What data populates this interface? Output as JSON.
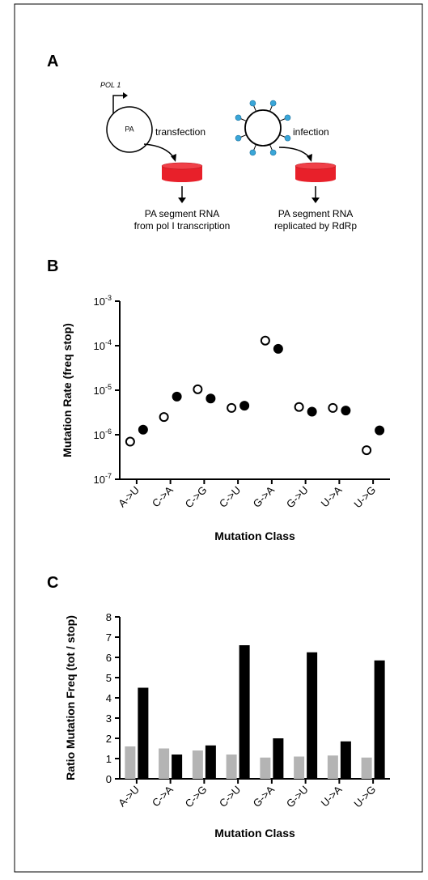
{
  "panel_labels": [
    "A",
    "B",
    "C"
  ],
  "diagram": {
    "promoter": "POL 1",
    "plasmid": "PA",
    "left_step": "transfection",
    "right_step": "infection",
    "left_result": [
      "PA segment RNA",
      "from pol I transcription"
    ],
    "right_result": [
      "PA segment RNA",
      "replicated by RdRp"
    ]
  },
  "chart_data": [
    {
      "type": "dot",
      "y_label": "Mutation Rate (freq stop)",
      "x_label": "Mutation Class",
      "log_y": true,
      "categories": [
        "A->U",
        "C->A",
        "C->G",
        "C->U",
        "G->A",
        "G->U",
        "U->A",
        "U->G"
      ],
      "series": [
        {
          "color": "#000000",
          "marker": "open",
          "values": [
            7e-07,
            2.5e-06,
            1.05e-05,
            4e-06,
            0.00013,
            4.2e-06,
            4e-06,
            4.5e-07
          ]
        },
        {
          "color": "#000000",
          "marker": "filled",
          "values": [
            1.3e-06,
            7.2e-06,
            6.5e-06,
            4.5e-06,
            8.5e-05,
            3.3e-06,
            3.5e-06,
            1.25e-06
          ]
        }
      ],
      "ylim": [
        1e-07,
        0.001
      ],
      "yticks": [
        {
          "value": 1e-07,
          "label": "10-7"
        },
        {
          "value": 1e-06,
          "label": "10-6"
        },
        {
          "value": 1e-05,
          "label": "10-5"
        },
        {
          "value": 0.0001,
          "label": "10-4"
        },
        {
          "value": 0.001,
          "label": "10-3"
        }
      ]
    },
    {
      "type": "bar",
      "y_label": "Ratio Mutation Freq (tot / stop)",
      "x_label": "Mutation Class",
      "categories": [
        "A->U",
        "C->A",
        "C->G",
        "C->U",
        "G->A",
        "G->U",
        "U->A",
        "U->G"
      ],
      "series": [
        {
          "color": "#b4b4b4",
          "values": [
            1.6,
            1.5,
            1.4,
            1.2,
            1.05,
            1.1,
            1.15,
            1.05
          ]
        },
        {
          "color": "#000000",
          "values": [
            4.5,
            1.2,
            1.65,
            6.6,
            2.0,
            6.25,
            1.85,
            5.85
          ]
        }
      ],
      "ylim": [
        0,
        8
      ],
      "yticks": [
        0,
        1,
        2,
        3,
        4,
        5,
        6,
        7,
        8
      ]
    }
  ]
}
